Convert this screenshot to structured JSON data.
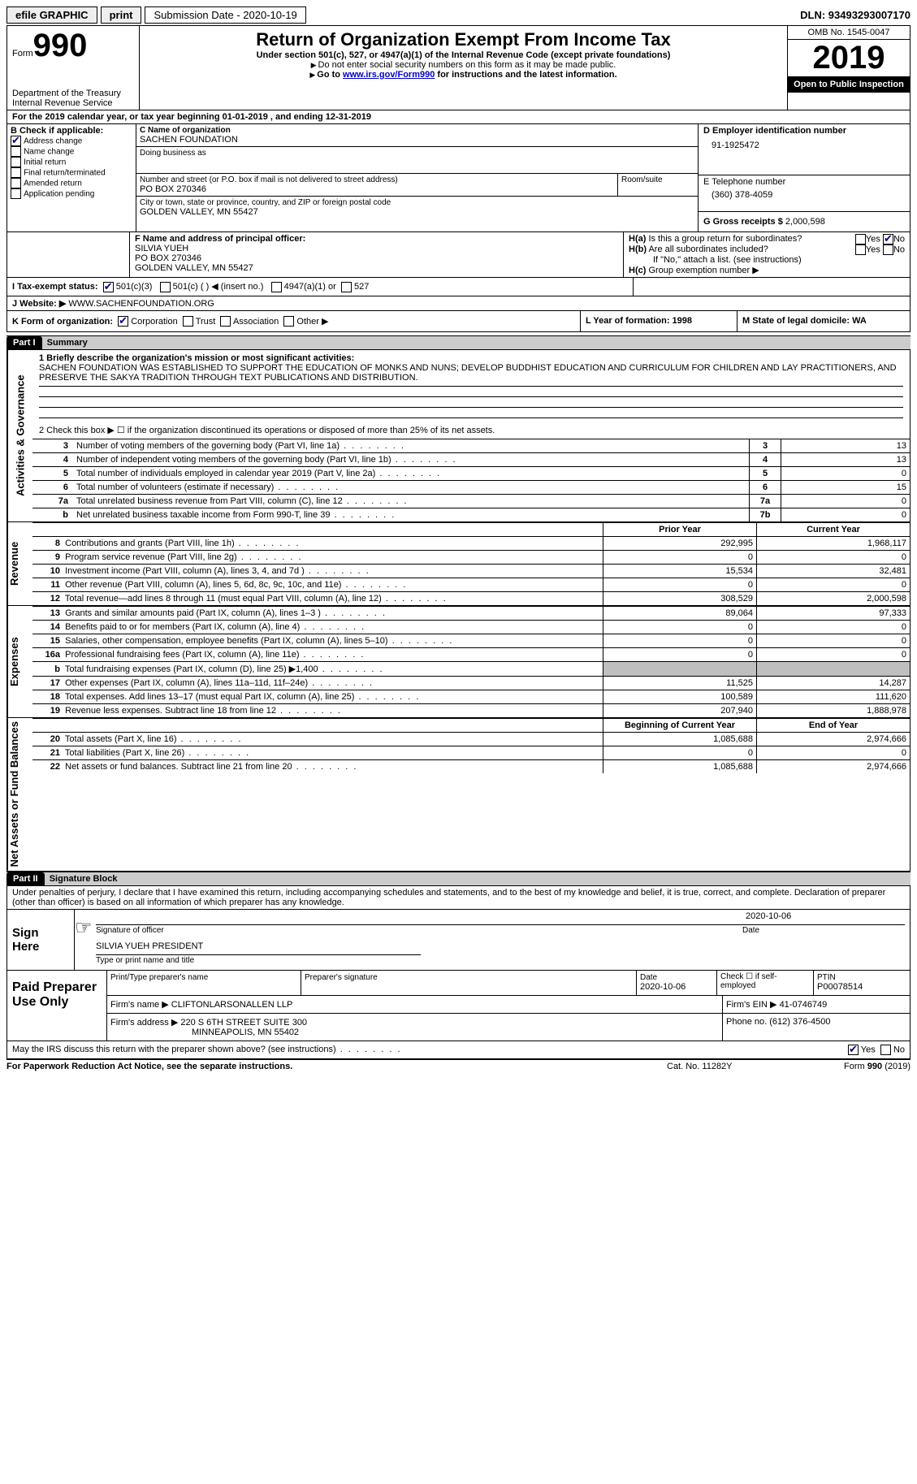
{
  "topbar": {
    "efile": "efile GRAPHIC",
    "print": "print",
    "submission_label": "Submission Date - 2020-10-19",
    "dln_label": "DLN: 93493293007170"
  },
  "header": {
    "form_label": "Form",
    "form_number": "990",
    "dept": "Department of the Treasury\nInternal Revenue Service",
    "title": "Return of Organization Exempt From Income Tax",
    "subtitle": "Under section 501(c), 527, or 4947(a)(1) of the Internal Revenue Code (except private foundations)",
    "note1": "Do not enter social security numbers on this form as it may be made public.",
    "note2_pre": "Go to ",
    "note2_link": "www.irs.gov/Form990",
    "note2_post": " for instructions and the latest information.",
    "omb": "OMB No. 1545-0047",
    "year": "2019",
    "public": "Open to Public Inspection"
  },
  "period": {
    "line": "For the 2019 calendar year, or tax year beginning 01-01-2019   , and ending 12-31-2019"
  },
  "boxB": {
    "label": "B Check if applicable:",
    "items": [
      {
        "label": "Address change",
        "checked": true
      },
      {
        "label": "Name change",
        "checked": false
      },
      {
        "label": "Initial return",
        "checked": false
      },
      {
        "label": "Final return/terminated",
        "checked": false
      },
      {
        "label": "Amended return",
        "checked": false
      },
      {
        "label": "Application pending",
        "checked": false
      }
    ]
  },
  "boxC": {
    "name_label": "C Name of organization",
    "name": "SACHEN FOUNDATION",
    "dba_label": "Doing business as",
    "dba": "",
    "street_label": "Number and street (or P.O. box if mail is not delivered to street address)",
    "room_label": "Room/suite",
    "street": "PO BOX 270346",
    "city_label": "City or town, state or province, country, and ZIP or foreign postal code",
    "city": "GOLDEN VALLEY, MN  55427"
  },
  "boxD": {
    "label": "D Employer identification number",
    "value": "91-1925472"
  },
  "boxE": {
    "label": "E Telephone number",
    "value": "(360) 378-4059"
  },
  "boxG": {
    "label": "G Gross receipts $",
    "value": "2,000,598"
  },
  "boxF": {
    "label": "F Name and address of principal officer:",
    "name": "SILVIA YUEH",
    "addr1": "PO BOX 270346",
    "addr2": "GOLDEN VALLEY, MN  55427"
  },
  "boxH": {
    "ha_label": "H(a)  Is this a group return for subordinates?",
    "ha_yes": "Yes",
    "ha_no": "No",
    "hb_label": "H(b)  Are all subordinates included?",
    "hb_note": "If \"No,\" attach a list. (see instructions)",
    "hc_label": "H(c)  Group exemption number ▶"
  },
  "boxI": {
    "label": "I   Tax-exempt status:",
    "opts": [
      "501(c)(3)",
      "501(c) (   ) ◀ (insert no.)",
      "4947(a)(1) or",
      "527"
    ]
  },
  "boxJ": {
    "label": "J   Website: ▶",
    "value": "WWW.SACHENFOUNDATION.ORG"
  },
  "boxK": {
    "label": "K Form of organization:",
    "opts": [
      "Corporation",
      "Trust",
      "Association",
      "Other ▶"
    ]
  },
  "boxL": {
    "label": "L Year of formation: 1998"
  },
  "boxM": {
    "label": "M State of legal domicile: WA"
  },
  "part1": {
    "hdr": "Part I",
    "title": "Summary",
    "q1_label": "1   Briefly describe the organization's mission or most significant activities:",
    "q1_text": "SACHEN FOUNDATION WAS ESTABLISHED TO SUPPORT THE EDUCATION OF MONKS AND NUNS; DEVELOP BUDDHIST EDUCATION AND CURRICULUM FOR CHILDREN AND LAY PRACTITIONERS, AND PRESERVE THE SAKYA TRADITION THROUGH TEXT PUBLICATIONS AND DISTRIBUTION.",
    "q2": "2    Check this box ▶ ☐  if the organization discontinued its operations or disposed of more than 25% of its net assets.",
    "rows_gov": [
      {
        "n": "3",
        "t": "Number of voting members of the governing body (Part VI, line 1a)",
        "b": "3",
        "v": "13"
      },
      {
        "n": "4",
        "t": "Number of independent voting members of the governing body (Part VI, line 1b)",
        "b": "4",
        "v": "13"
      },
      {
        "n": "5",
        "t": "Total number of individuals employed in calendar year 2019 (Part V, line 2a)",
        "b": "5",
        "v": "0"
      },
      {
        "n": "6",
        "t": "Total number of volunteers (estimate if necessary)",
        "b": "6",
        "v": "15"
      },
      {
        "n": "7a",
        "t": "Total unrelated business revenue from Part VIII, column (C), line 12",
        "b": "7a",
        "v": "0"
      },
      {
        "n": "b",
        "t": "Net unrelated business taxable income from Form 990-T, line 39",
        "b": "7b",
        "v": "0"
      }
    ],
    "col_prior": "Prior Year",
    "col_current": "Current Year",
    "rows_rev": [
      {
        "n": "8",
        "t": "Contributions and grants (Part VIII, line 1h)",
        "p": "292,995",
        "c": "1,968,117"
      },
      {
        "n": "9",
        "t": "Program service revenue (Part VIII, line 2g)",
        "p": "0",
        "c": "0"
      },
      {
        "n": "10",
        "t": "Investment income (Part VIII, column (A), lines 3, 4, and 7d )",
        "p": "15,534",
        "c": "32,481"
      },
      {
        "n": "11",
        "t": "Other revenue (Part VIII, column (A), lines 5, 6d, 8c, 9c, 10c, and 11e)",
        "p": "0",
        "c": "0"
      },
      {
        "n": "12",
        "t": "Total revenue—add lines 8 through 11 (must equal Part VIII, column (A), line 12)",
        "p": "308,529",
        "c": "2,000,598"
      }
    ],
    "rows_exp": [
      {
        "n": "13",
        "t": "Grants and similar amounts paid (Part IX, column (A), lines 1–3 )",
        "p": "89,064",
        "c": "97,333"
      },
      {
        "n": "14",
        "t": "Benefits paid to or for members (Part IX, column (A), line 4)",
        "p": "0",
        "c": "0"
      },
      {
        "n": "15",
        "t": "Salaries, other compensation, employee benefits (Part IX, column (A), lines 5–10)",
        "p": "0",
        "c": "0"
      },
      {
        "n": "16a",
        "t": "Professional fundraising fees (Part IX, column (A), line 11e)",
        "p": "0",
        "c": "0"
      },
      {
        "n": "b",
        "t": "Total fundraising expenses (Part IX, column (D), line 25) ▶1,400",
        "p": "",
        "c": "",
        "grey": true
      },
      {
        "n": "17",
        "t": "Other expenses (Part IX, column (A), lines 11a–11d, 11f–24e)",
        "p": "11,525",
        "c": "14,287"
      },
      {
        "n": "18",
        "t": "Total expenses. Add lines 13–17 (must equal Part IX, column (A), line 25)",
        "p": "100,589",
        "c": "111,620"
      },
      {
        "n": "19",
        "t": "Revenue less expenses. Subtract line 18 from line 12",
        "p": "207,940",
        "c": "1,888,978"
      }
    ],
    "col_begin": "Beginning of Current Year",
    "col_end": "End of Year",
    "rows_net": [
      {
        "n": "20",
        "t": "Total assets (Part X, line 16)",
        "p": "1,085,688",
        "c": "2,974,666"
      },
      {
        "n": "21",
        "t": "Total liabilities (Part X, line 26)",
        "p": "0",
        "c": "0"
      },
      {
        "n": "22",
        "t": "Net assets or fund balances. Subtract line 21 from line 20",
        "p": "1,085,688",
        "c": "2,974,666"
      }
    ],
    "side_gov": "Activities & Governance",
    "side_rev": "Revenue",
    "side_exp": "Expenses",
    "side_net": "Net Assets or Fund Balances"
  },
  "part2": {
    "hdr": "Part II",
    "title": "Signature Block",
    "decl": "Under penalties of perjury, I declare that I have examined this return, including accompanying schedules and statements, and to the best of my knowledge and belief, it is true, correct, and complete. Declaration of preparer (other than officer) is based on all information of which preparer has any knowledge.",
    "sign_here": "Sign Here",
    "sig_officer": "Signature of officer",
    "sig_date_label": "Date",
    "sig_date": "2020-10-06",
    "officer_name": "SILVIA YUEH PRESIDENT",
    "officer_sub": "Type or print name and title",
    "paid": "Paid Preparer Use Only",
    "prep_name_label": "Print/Type preparer's name",
    "prep_sig_label": "Preparer's signature",
    "prep_date_label": "Date",
    "prep_date": "2020-10-06",
    "self_emp": "Check ☐  if self-employed",
    "ptin_label": "PTIN",
    "ptin": "P00078514",
    "firm_name_label": "Firm's name    ▶",
    "firm_name": "CLIFTONLARSONALLEN LLP",
    "firm_ein_label": "Firm's EIN ▶",
    "firm_ein": "41-0746749",
    "firm_addr_label": "Firm's address ▶",
    "firm_addr1": "220 S 6TH STREET SUITE 300",
    "firm_addr2": "MINNEAPOLIS, MN  55402",
    "phone_label": "Phone no.",
    "phone": "(612) 376-4500",
    "discuss": "May the IRS discuss this return with the preparer shown above? (see instructions)",
    "yes": "Yes",
    "no": "No"
  },
  "footer": {
    "left": "For Paperwork Reduction Act Notice, see the separate instructions.",
    "mid": "Cat. No. 11282Y",
    "right": "Form 990 (2019)"
  }
}
